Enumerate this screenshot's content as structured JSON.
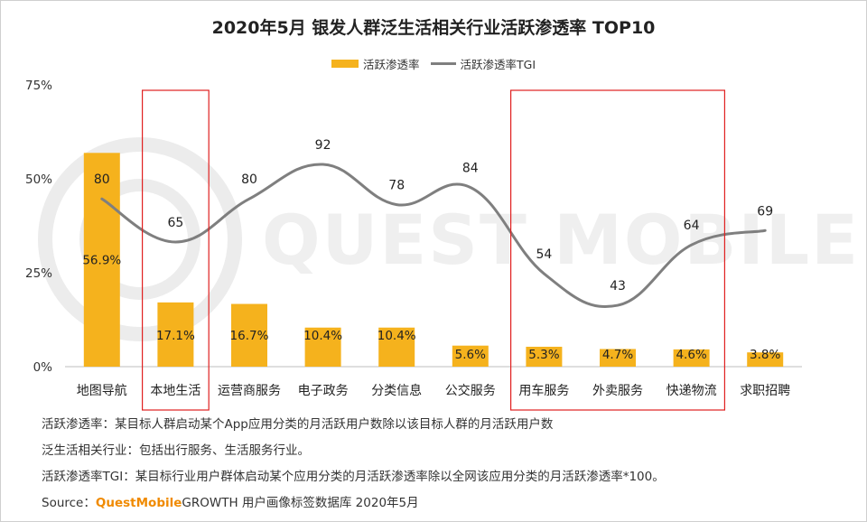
{
  "title": "2020年5月 银发人群泛生活相关行业活跃渗透率 TOP10",
  "legend": {
    "bar_label": "活跃渗透率",
    "line_label": "活跃渗透率TGI"
  },
  "colors": {
    "bar": "#f5b21d",
    "line": "#7f7f7f",
    "highlight_box": "#e02020"
  },
  "watermark": "QUEST MOBILE",
  "notes": {
    "line1": "活跃渗透率：某目标人群启动某个App应用分类的月活跃用户数除以该目标人群的月活跃用户数",
    "line2": "泛生活相关行业：包括出行服务、生活服务行业。",
    "line3": "活跃渗透率TGI：某目标行业用户群体启动某个应用分类的月活跃渗透率除以全网该应用分类的月活跃渗透率*100。",
    "source_prefix": "Source：",
    "source_brand": "QuestMobile",
    "source_rest": "GROWTH 用户画像标签数据库 2020年5月"
  },
  "chart_data": {
    "type": "bar",
    "title": "2020年5月 银发人群泛生活相关行业活跃渗透率 TOP10",
    "categories": [
      "地图导航",
      "本地生活",
      "运营商服务",
      "电子政务",
      "分类信息",
      "公交服务",
      "用车服务",
      "外卖服务",
      "快递物流",
      "求职招聘"
    ],
    "series": [
      {
        "name": "活跃渗透率",
        "type": "bar",
        "values": [
          56.9,
          17.1,
          16.7,
          10.4,
          10.4,
          5.6,
          5.3,
          4.7,
          4.6,
          3.8
        ],
        "labels": [
          "56.9%",
          "17.1%",
          "16.7%",
          "10.4%",
          "10.4%",
          "5.6%",
          "5.3%",
          "4.7%",
          "4.6%",
          "3.8%"
        ]
      },
      {
        "name": "活跃渗透率TGI",
        "type": "line",
        "values": [
          80,
          65,
          80,
          92,
          78,
          84,
          54,
          43,
          64,
          69
        ]
      }
    ],
    "yticks": [
      "0%",
      "25%",
      "50%",
      "75%"
    ],
    "ylim": [
      0,
      75
    ],
    "highlighted_categories": [
      "本地生活",
      "用车服务",
      "外卖服务",
      "快递物流"
    ]
  }
}
